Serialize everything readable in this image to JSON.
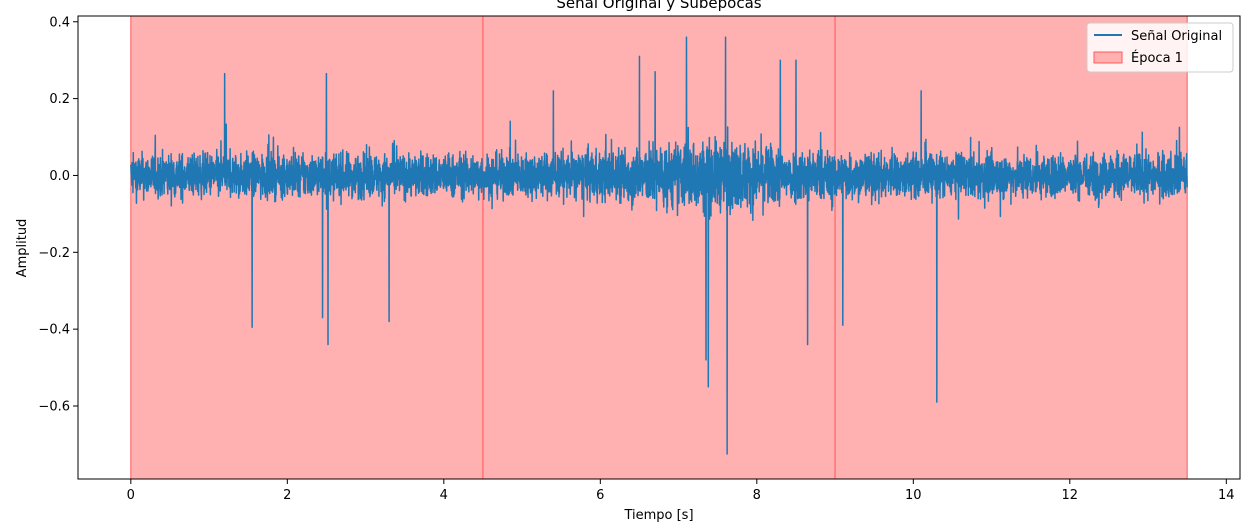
{
  "chart_data": {
    "type": "line",
    "title": "Señal Original y Subépocas",
    "xlabel": "Tiempo [s]",
    "ylabel": "Amplitud",
    "xlim": [
      -0.675,
      14.175
    ],
    "ylim": [
      -0.79,
      0.415
    ],
    "x_ticks": [
      0,
      2,
      4,
      6,
      8,
      10,
      12,
      14
    ],
    "y_ticks": [
      -0.6,
      -0.4,
      -0.2,
      0.0,
      0.2,
      0.4
    ],
    "x_tick_labels": [
      "0",
      "2",
      "4",
      "6",
      "8",
      "10",
      "12",
      "14"
    ],
    "y_tick_labels": [
      "−0.6",
      "−0.4",
      "−0.2",
      "0.0",
      "0.2",
      "0.4"
    ],
    "grid": false,
    "legend_position": "top-right",
    "series": [
      {
        "name": "Señal Original",
        "color": "#1f77b4",
        "x_range": [
          0,
          13.5
        ],
        "typical_envelope": [
          -0.13,
          0.13
        ],
        "peaks": [
          {
            "x": 1.2,
            "y": 0.265
          },
          {
            "x": 1.55,
            "y": -0.395
          },
          {
            "x": 2.5,
            "y": 0.265
          },
          {
            "x": 2.45,
            "y": -0.37
          },
          {
            "x": 2.52,
            "y": -0.44
          },
          {
            "x": 3.3,
            "y": -0.38
          },
          {
            "x": 5.4,
            "y": 0.22
          },
          {
            "x": 6.5,
            "y": 0.31
          },
          {
            "x": 6.7,
            "y": 0.27
          },
          {
            "x": 7.1,
            "y": 0.36
          },
          {
            "x": 7.35,
            "y": -0.48
          },
          {
            "x": 7.38,
            "y": -0.55
          },
          {
            "x": 7.6,
            "y": 0.36
          },
          {
            "x": 7.62,
            "y": -0.725
          },
          {
            "x": 8.3,
            "y": 0.3
          },
          {
            "x": 8.5,
            "y": 0.3
          },
          {
            "x": 8.65,
            "y": -0.44
          },
          {
            "x": 9.1,
            "y": -0.39
          },
          {
            "x": 10.3,
            "y": -0.59
          },
          {
            "x": 10.1,
            "y": 0.22
          },
          {
            "x": 13.4,
            "y": 0.125
          }
        ]
      }
    ],
    "epochs": [
      {
        "name": "Época 1",
        "start": 0.0,
        "end": 4.5
      },
      {
        "name": "",
        "start": 4.5,
        "end": 9.0
      },
      {
        "name": "",
        "start": 9.0,
        "end": 13.5
      }
    ],
    "colors": {
      "signal": "#1f77b4",
      "epoch_fill": "#ffb0b0",
      "epoch_edge": "#ff5a5a"
    }
  }
}
